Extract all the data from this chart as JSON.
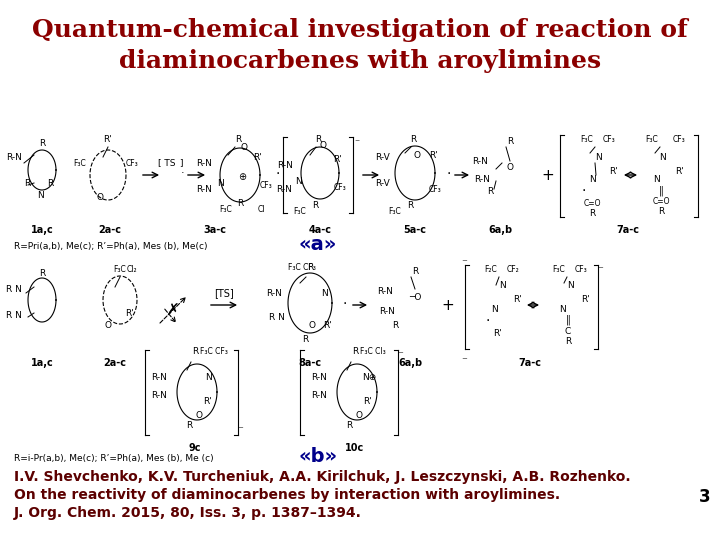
{
  "title_line1": "Quantum-chemical investigation of reaction of",
  "title_line2": "diaminocarbenes with aroylimines",
  "title_color": "#8B0000",
  "title_fontsize": 18,
  "title_bold": true,
  "label_a": "«a»",
  "label_b": "«b»",
  "label_color": "#00008B",
  "label_fontsize": 14,
  "label_bold": true,
  "cite_line1": "I.V. Shevchenko, K.V. Turcheniuk, A.A. Kirilchuk, J. Leszczynski, A.B. Rozhenko.",
  "cite_line2": "On the reactivity of diaminocarbenes by interaction with aroylimines.",
  "cite_line3": "J. Org. Chem. 2015, 80, Iss. 3, p. 1387–1394.",
  "cite_color": "#5C0000",
  "cite_fontsize": 10,
  "cite_bold": true,
  "page_number": "3",
  "page_color": "#000000",
  "page_fontsize": 12,
  "bg_color": "#FFFFFF",
  "scheme_a_note": "R=Pri(a,b), Me(c); R’=Ph(a), Mes (b), Me(c)",
  "scheme_b_note": "R=i-Pr(a,b), Me(c); R’=Ph(a), Mes (b), Me (c)",
  "note_fontsize": 6.5,
  "note_color": "#000000"
}
